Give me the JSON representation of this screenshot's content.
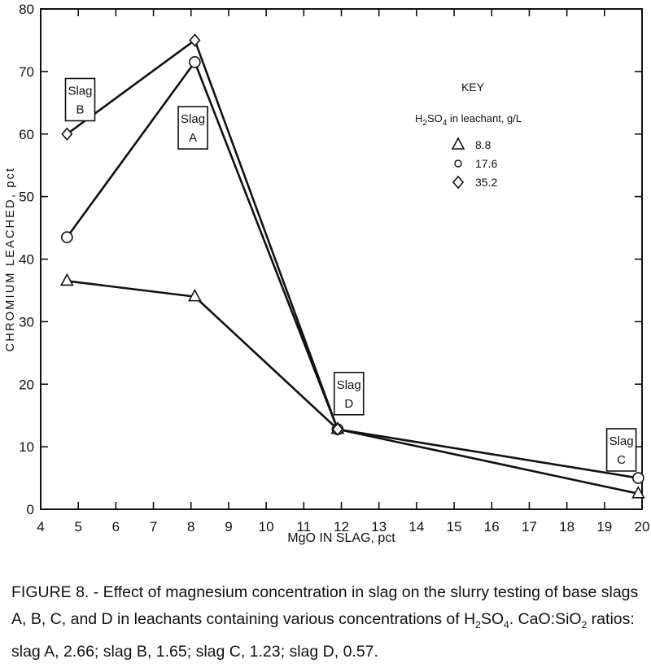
{
  "chart_data": {
    "type": "line",
    "xlabel": "MgO IN SLAG, pct",
    "ylabel": "CHROMIUM LEACHED, pct",
    "xlim": [
      4,
      20
    ],
    "ylim": [
      0,
      80
    ],
    "xticks": [
      4,
      5,
      6,
      7,
      8,
      9,
      10,
      11,
      12,
      13,
      14,
      15,
      16,
      17,
      18,
      19,
      20
    ],
    "yticks": [
      0,
      10,
      20,
      30,
      40,
      50,
      60,
      70,
      80
    ],
    "grid": false,
    "legend": {
      "position": "top-right",
      "title": "KEY",
      "subtitle_parts": [
        "H",
        "2",
        "SO",
        "4",
        " in leachant, g/L"
      ]
    },
    "series": [
      {
        "name": "8.8",
        "marker": "triangle",
        "x": [
          4.7,
          8.1,
          11.9,
          19.9
        ],
        "y": [
          36.5,
          34,
          12.8,
          2.5
        ]
      },
      {
        "name": "17.6",
        "marker": "circle",
        "x": [
          4.7,
          8.1,
          11.9,
          19.9
        ],
        "y": [
          43.5,
          71.5,
          12.8,
          5
        ]
      },
      {
        "name": "35.2",
        "marker": "diamond",
        "x": [
          4.7,
          8.1,
          11.9
        ],
        "y": [
          60,
          75,
          12.8
        ]
      }
    ],
    "annotations": [
      {
        "lines": [
          "Slag",
          "B"
        ],
        "x": 5.05,
        "y": 65.5
      },
      {
        "lines": [
          "Slag",
          "A"
        ],
        "x": 8.05,
        "y": 61
      },
      {
        "lines": [
          "Slag",
          "D"
        ],
        "x": 12.2,
        "y": 18.5
      },
      {
        "lines": [
          "Slag",
          "C"
        ],
        "x": 19.45,
        "y": 9.5
      }
    ]
  },
  "caption": {
    "figure_label": "FIGURE 8. -",
    "text_1": " Effect of magnesium concentration in slag on the slurry testing of base slags A, B, C, and D in leachants containing various concentrations of H",
    "sub_1": "2",
    "text_2": "SO",
    "sub_2": "4",
    "text_3": ".  CaO:SiO",
    "sub_3": "2",
    "text_4": " ratios:  slag A, 2.66; slag B, 1.65; slag C, 1.23; slag D, 0.57."
  }
}
